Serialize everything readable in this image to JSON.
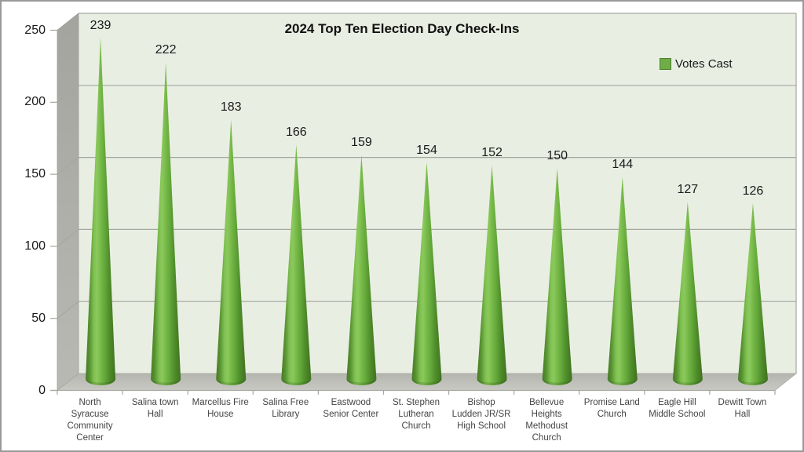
{
  "title": "2024 Top Ten Election Day Check-Ins",
  "legend": {
    "label": "Votes Cast"
  },
  "chart_data": {
    "type": "bar",
    "bar_shape": "3d-cone",
    "title": "2024 Top Ten Election Day Check-Ins",
    "legend_entries": [
      "Votes Cast"
    ],
    "legend_position": "top-right",
    "categories": [
      "North Syracuse Community Center",
      "Salina town Hall",
      "Marcellus Fire House",
      "Salina Free Library",
      "Eastwood Senior Center",
      "St. Stephen Lutheran Church",
      "Bishop Ludden JR/SR High School",
      "Bellevue Heights Methodust Church",
      "Promise Land Church",
      "Eagle Hill Middle School",
      "Dewitt Town Hall"
    ],
    "category_label_lines": [
      [
        "North",
        "Syracuse",
        "Community",
        "Center"
      ],
      [
        "Salina town",
        "Hall"
      ],
      [
        "Marcellus Fire",
        "House"
      ],
      [
        "Salina Free",
        "Library"
      ],
      [
        "Eastwood",
        "Senior Center"
      ],
      [
        "St. Stephen",
        "Lutheran",
        "Church"
      ],
      [
        "Bishop",
        "Ludden JR/SR",
        "High School"
      ],
      [
        "Bellevue",
        "Heights",
        "Methodust",
        "Church"
      ],
      [
        "Promise Land",
        "Church"
      ],
      [
        "Eagle Hill",
        "Middle School"
      ],
      [
        "Dewitt Town",
        "Hall"
      ]
    ],
    "series": [
      {
        "name": "Votes Cast",
        "values": [
          239,
          222,
          183,
          166,
          159,
          154,
          152,
          150,
          144,
          127,
          126
        ]
      }
    ],
    "data_labels": [
      "239",
      "222",
      "183",
      "166",
      "159",
      "154",
      "152",
      "150",
      "144",
      "127",
      "126"
    ],
    "ylim": [
      0,
      250
    ],
    "yticks": [
      0,
      50,
      100,
      150,
      200,
      250
    ],
    "grid": true,
    "xlabel": "",
    "ylabel": ""
  },
  "colors": {
    "plot_bg": "#e9eee3",
    "gridline": "#a6a6a1",
    "wall_top": "#a4a49e",
    "wall_bottom": "#b9b9b3",
    "floor_back": "#b5b5af",
    "floor_front": "#c9c9c3",
    "cone_edge_dark": "#3f7220",
    "cone_highlight": "#8bc95d",
    "cone_mid": "#63a83a",
    "legend_swatch": "#6fad47",
    "legend_swatch_border": "#4e7e2d",
    "text": "#1a1a1a",
    "category_text": "#444444",
    "frame_border": "#9a9a9a"
  }
}
